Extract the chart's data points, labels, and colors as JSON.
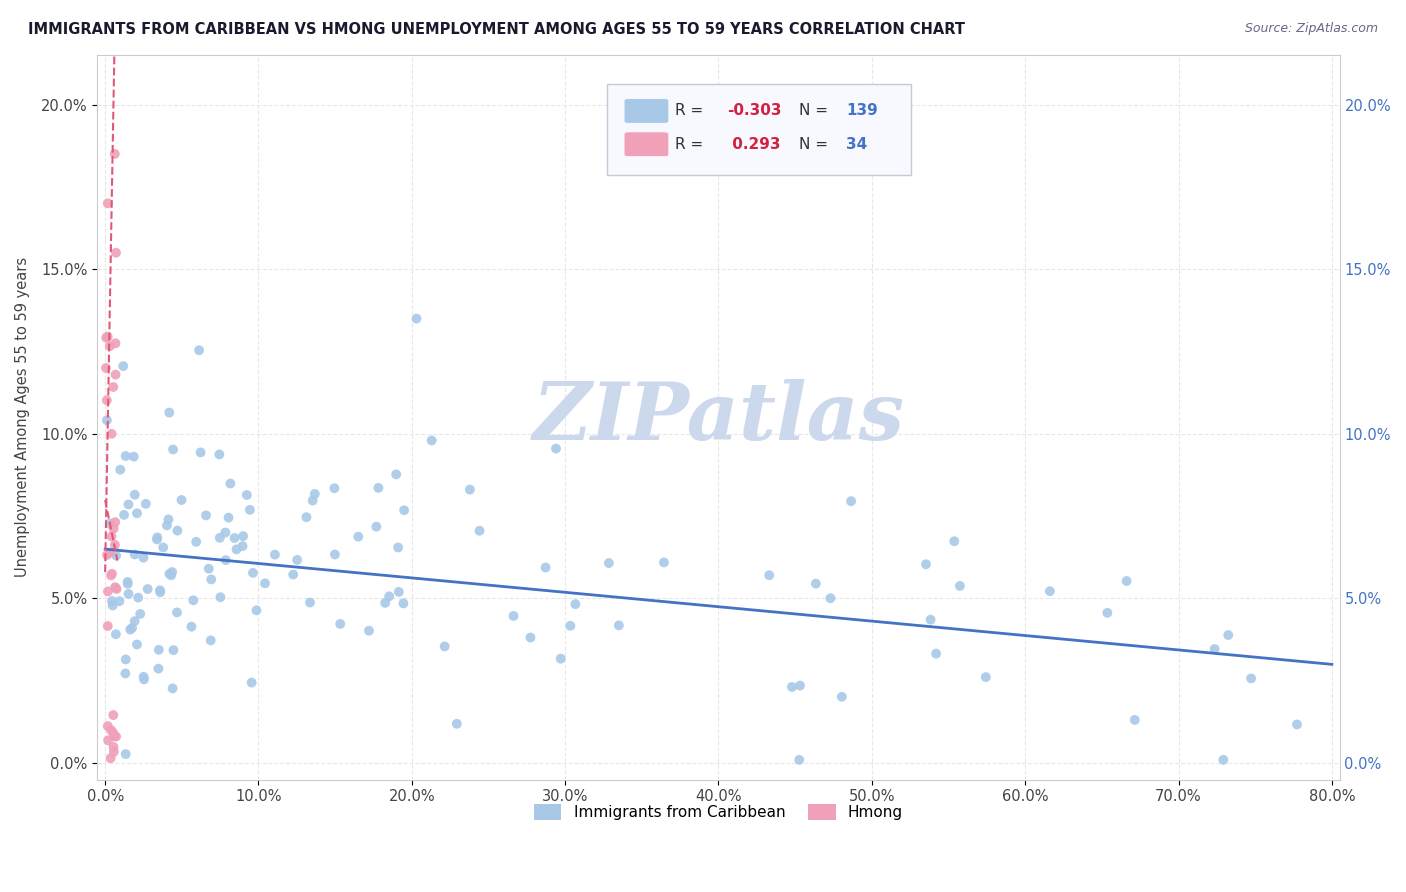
{
  "title": "IMMIGRANTS FROM CARIBBEAN VS HMONG UNEMPLOYMENT AMONG AGES 55 TO 59 YEARS CORRELATION CHART",
  "source": "Source: ZipAtlas.com",
  "ylabel": "Unemployment Among Ages 55 to 59 years",
  "xlim": [
    -0.005,
    0.805
  ],
  "ylim": [
    -0.005,
    0.215
  ],
  "xticks": [
    0.0,
    0.1,
    0.2,
    0.3,
    0.4,
    0.5,
    0.6,
    0.7,
    0.8
  ],
  "xtick_labels": [
    "0.0%",
    "10.0%",
    "20.0%",
    "30.0%",
    "40.0%",
    "50.0%",
    "60.0%",
    "70.0%",
    "80.0%"
  ],
  "yticks": [
    0.0,
    0.05,
    0.1,
    0.15,
    0.2
  ],
  "ytick_labels": [
    "0.0%",
    "5.0%",
    "10.0%",
    "15.0%",
    "20.0%"
  ],
  "caribbean_color": "#a8c8e8",
  "hmong_color": "#f0a0b8",
  "caribbean_line_color": "#4472c4",
  "hmong_line_color": "#e05878",
  "R_caribbean": -0.303,
  "N_caribbean": 139,
  "R_hmong": 0.293,
  "N_hmong": 34,
  "watermark_text": "ZIPatlas",
  "watermark_color": "#ccd8ec",
  "background_color": "#ffffff",
  "grid_color": "#e8e8e8",
  "legend_box_color": "#f8f8ff",
  "legend_border_color": "#c8c8d8",
  "title_color": "#1a1a2e",
  "source_color": "#666688",
  "right_tick_color": "#4472c4",
  "left_tick_color": "#444444"
}
